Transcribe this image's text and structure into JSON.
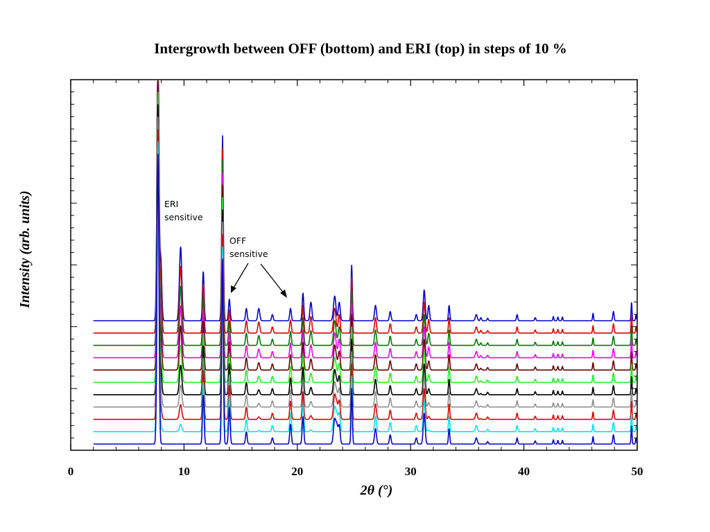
{
  "chart_data": {
    "type": "line",
    "title": "Intergrowth between OFF (bottom) and ERI (top) in steps of 10 %",
    "xlabel": "2θ (°)",
    "ylabel": "Intensity (arb. units)",
    "xlim": [
      0,
      50
    ],
    "x_ticks": [
      "0",
      "10",
      "20",
      "30",
      "40",
      "50"
    ],
    "y_tick_labels": false,
    "grid": false,
    "x_start": 2.0,
    "baseline_step": 0.2,
    "series": [
      {
        "color": "#0000cc",
        "baseline": 0.0,
        "eri_fraction": 0.0
      },
      {
        "color": "#00e5ee",
        "baseline": 0.2,
        "eri_fraction": 0.1
      },
      {
        "color": "#dd0000",
        "baseline": 0.4,
        "eri_fraction": 0.2
      },
      {
        "color": "#909090",
        "baseline": 0.6,
        "eri_fraction": 0.3
      },
      {
        "color": "#000000",
        "baseline": 0.8,
        "eri_fraction": 0.4
      },
      {
        "color": "#22ee22",
        "baseline": 1.0,
        "eri_fraction": 0.5
      },
      {
        "color": "#6b0000",
        "baseline": 1.2,
        "eri_fraction": 0.6
      },
      {
        "color": "#ee00ee",
        "baseline": 1.4,
        "eri_fraction": 0.7
      },
      {
        "color": "#007700",
        "baseline": 1.6,
        "eri_fraction": 0.8
      },
      {
        "color": "#dd0000",
        "baseline": 1.8,
        "eri_fraction": 0.9
      },
      {
        "color": "#0000cc",
        "baseline": 2.0,
        "eri_fraction": 1.0
      }
    ],
    "common_peaks": [
      {
        "x": 7.7,
        "h": 4.7,
        "w": 0.12
      },
      {
        "x": 11.7,
        "h": 0.8,
        "w": 0.1
      },
      {
        "x": 13.4,
        "h": 3.0,
        "w": 0.1
      },
      {
        "x": 14.0,
        "h": 0.35,
        "w": 0.1
      },
      {
        "x": 15.5,
        "h": 0.2,
        "w": 0.1
      },
      {
        "x": 17.8,
        "h": 0.1,
        "w": 0.1
      },
      {
        "x": 19.4,
        "h": 0.2,
        "w": 0.1
      },
      {
        "x": 20.5,
        "h": 0.45,
        "w": 0.1
      },
      {
        "x": 23.3,
        "h": 0.4,
        "w": 0.15
      },
      {
        "x": 23.7,
        "h": 0.3,
        "w": 0.12
      },
      {
        "x": 24.8,
        "h": 0.9,
        "w": 0.08
      },
      {
        "x": 26.9,
        "h": 0.25,
        "w": 0.12
      },
      {
        "x": 28.2,
        "h": 0.15,
        "w": 0.1
      },
      {
        "x": 30.5,
        "h": 0.1,
        "w": 0.1
      },
      {
        "x": 31.2,
        "h": 0.5,
        "w": 0.12
      },
      {
        "x": 33.4,
        "h": 0.25,
        "w": 0.08
      },
      {
        "x": 35.8,
        "h": 0.1,
        "w": 0.12
      },
      {
        "x": 36.8,
        "h": 0.04,
        "w": 0.08
      },
      {
        "x": 39.4,
        "h": 0.1,
        "w": 0.08
      },
      {
        "x": 41.0,
        "h": 0.05,
        "w": 0.08
      },
      {
        "x": 42.6,
        "h": 0.07,
        "w": 0.06
      },
      {
        "x": 43.0,
        "h": 0.06,
        "w": 0.06
      },
      {
        "x": 43.4,
        "h": 0.06,
        "w": 0.06
      },
      {
        "x": 46.1,
        "h": 0.12,
        "w": 0.06
      },
      {
        "x": 47.9,
        "h": 0.15,
        "w": 0.08
      },
      {
        "x": 49.5,
        "h": 0.3,
        "w": 0.06
      },
      {
        "x": 49.9,
        "h": 0.1,
        "w": 0.06
      }
    ],
    "eri_peaks": [
      {
        "x": 7.95,
        "h": 1.0,
        "w": 0.12
      },
      {
        "x": 9.7,
        "h": 1.2,
        "w": 0.15
      },
      {
        "x": 16.6,
        "h": 0.2,
        "w": 0.12
      },
      {
        "x": 21.2,
        "h": 0.3,
        "w": 0.12
      },
      {
        "x": 31.6,
        "h": 0.25,
        "w": 0.1
      },
      {
        "x": 36.2,
        "h": 0.05,
        "w": 0.08
      }
    ],
    "off_peaks": [
      {
        "x": 14.0,
        "h": 0.25,
        "w": 0.1
      },
      {
        "x": 19.4,
        "h": 0.12,
        "w": 0.1
      },
      {
        "x": 23.5,
        "h": 0.25,
        "w": 0.12
      }
    ],
    "annotations": [
      {
        "lines": [
          "ERI",
          "sensitive"
        ]
      },
      {
        "lines": [
          "OFF",
          "sensitive"
        ]
      }
    ]
  }
}
